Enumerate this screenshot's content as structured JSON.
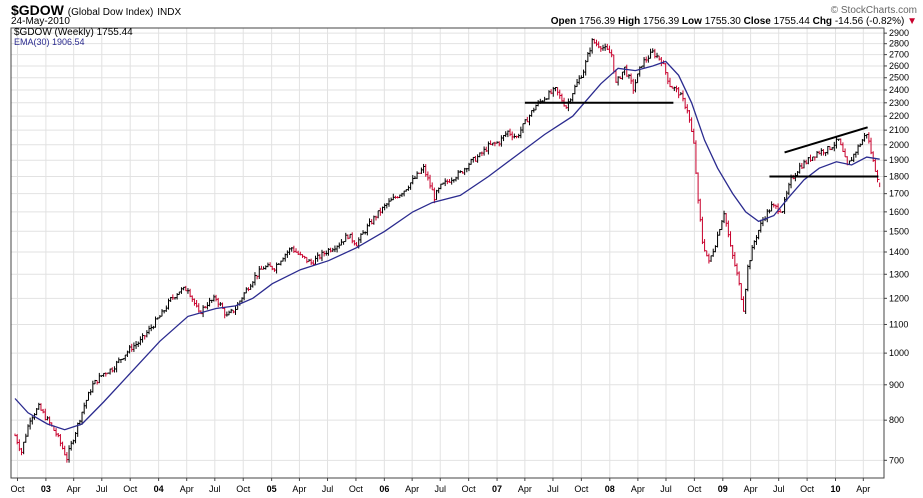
{
  "header": {
    "ticker": "$GDOW",
    "name": "(Global Dow Index)",
    "exchange": "INDX",
    "date": "24-May-2010",
    "brand": "© StockCharts.com",
    "open_label": "Open",
    "open": "1756.39",
    "high_label": "High",
    "high": "1756.39",
    "low_label": "Low",
    "low": "1755.30",
    "close_label": "Close",
    "close": "1755.44",
    "chg_label": "Chg",
    "chg": "-14.56 (-0.82%)",
    "chg_arrow": "▼"
  },
  "legend": {
    "price": "$GDOW (Weekly) 1755.44",
    "ema": "EMA(30) 1906.54"
  },
  "colors": {
    "up": "#000000",
    "down": "#c8002c",
    "ema": "#2b2b8f",
    "grid": "#e2e2e2"
  },
  "chart_data": {
    "type": "line",
    "scale": "log",
    "ylim": [
      660,
      2950
    ],
    "grid": true,
    "y_ticks": [
      700,
      800,
      900,
      1000,
      1100,
      1200,
      1300,
      1400,
      1500,
      1600,
      1700,
      1800,
      1900,
      2000,
      2100,
      2200,
      2300,
      2400,
      2500,
      2600,
      2700,
      2800,
      2900
    ],
    "x_ticks": [
      {
        "label": "Oct",
        "date": "2002-10-01",
        "bold": false
      },
      {
        "label": "03",
        "date": "2003-01-01",
        "bold": true
      },
      {
        "label": "Apr",
        "date": "2003-04-01",
        "bold": false
      },
      {
        "label": "Jul",
        "date": "2003-07-01",
        "bold": false
      },
      {
        "label": "Oct",
        "date": "2003-10-01",
        "bold": false
      },
      {
        "label": "04",
        "date": "2004-01-01",
        "bold": true
      },
      {
        "label": "Apr",
        "date": "2004-04-01",
        "bold": false
      },
      {
        "label": "Jul",
        "date": "2004-07-01",
        "bold": false
      },
      {
        "label": "Oct",
        "date": "2004-10-01",
        "bold": false
      },
      {
        "label": "05",
        "date": "2005-01-01",
        "bold": true
      },
      {
        "label": "Apr",
        "date": "2005-04-01",
        "bold": false
      },
      {
        "label": "Jul",
        "date": "2005-07-01",
        "bold": false
      },
      {
        "label": "Oct",
        "date": "2005-10-01",
        "bold": false
      },
      {
        "label": "06",
        "date": "2006-01-01",
        "bold": true
      },
      {
        "label": "Apr",
        "date": "2006-04-01",
        "bold": false
      },
      {
        "label": "Jul",
        "date": "2006-07-01",
        "bold": false
      },
      {
        "label": "Oct",
        "date": "2006-10-01",
        "bold": false
      },
      {
        "label": "07",
        "date": "2007-01-01",
        "bold": true
      },
      {
        "label": "Apr",
        "date": "2007-04-01",
        "bold": false
      },
      {
        "label": "Jul",
        "date": "2007-07-01",
        "bold": false
      },
      {
        "label": "Oct",
        "date": "2007-10-01",
        "bold": false
      },
      {
        "label": "08",
        "date": "2008-01-01",
        "bold": true
      },
      {
        "label": "Apr",
        "date": "2008-04-01",
        "bold": false
      },
      {
        "label": "Jul",
        "date": "2008-07-01",
        "bold": false
      },
      {
        "label": "Oct",
        "date": "2008-10-01",
        "bold": false
      },
      {
        "label": "09",
        "date": "2009-01-01",
        "bold": true
      },
      {
        "label": "Apr",
        "date": "2009-04-01",
        "bold": false
      },
      {
        "label": "Jul",
        "date": "2009-07-01",
        "bold": false
      },
      {
        "label": "Oct",
        "date": "2009-10-01",
        "bold": false
      },
      {
        "label": "10",
        "date": "2010-01-01",
        "bold": true
      },
      {
        "label": "Apr",
        "date": "2010-04-01",
        "bold": false
      }
    ],
    "series": [
      {
        "name": "$GDOW (Weekly)",
        "style": "hlc-bars",
        "points": [
          [
            "2002-09-23",
            760
          ],
          [
            "2002-10-14",
            720
          ],
          [
            "2002-11-11",
            805
          ],
          [
            "2002-12-09",
            835
          ],
          [
            "2003-01-06",
            800
          ],
          [
            "2003-02-03",
            765
          ],
          [
            "2003-03-10",
            705
          ],
          [
            "2003-04-07",
            770
          ],
          [
            "2003-05-05",
            840
          ],
          [
            "2003-06-02",
            900
          ],
          [
            "2003-07-07",
            935
          ],
          [
            "2003-08-04",
            950
          ],
          [
            "2003-09-08",
            990
          ],
          [
            "2003-10-06",
            1020
          ],
          [
            "2003-11-03",
            1040
          ],
          [
            "2003-12-08",
            1090
          ],
          [
            "2004-01-12",
            1140
          ],
          [
            "2004-02-09",
            1195
          ],
          [
            "2004-03-08",
            1230
          ],
          [
            "2004-04-05",
            1240
          ],
          [
            "2004-05-10",
            1140
          ],
          [
            "2004-06-07",
            1180
          ],
          [
            "2004-07-05",
            1200
          ],
          [
            "2004-08-09",
            1130
          ],
          [
            "2004-09-06",
            1160
          ],
          [
            "2004-10-04",
            1220
          ],
          [
            "2004-11-08",
            1290
          ],
          [
            "2004-12-06",
            1330
          ],
          [
            "2005-01-10",
            1330
          ],
          [
            "2005-02-07",
            1380
          ],
          [
            "2005-03-07",
            1420
          ],
          [
            "2005-04-04",
            1380
          ],
          [
            "2005-05-09",
            1350
          ],
          [
            "2005-06-06",
            1380
          ],
          [
            "2005-07-04",
            1410
          ],
          [
            "2005-08-08",
            1440
          ],
          [
            "2005-09-05",
            1480
          ],
          [
            "2005-10-03",
            1440
          ],
          [
            "2005-11-07",
            1520
          ],
          [
            "2005-12-05",
            1580
          ],
          [
            "2006-01-09",
            1640
          ],
          [
            "2006-02-06",
            1680
          ],
          [
            "2006-03-06",
            1720
          ],
          [
            "2006-04-10",
            1790
          ],
          [
            "2006-05-08",
            1850
          ],
          [
            "2006-06-12",
            1680
          ],
          [
            "2006-07-03",
            1740
          ],
          [
            "2006-08-07",
            1790
          ],
          [
            "2006-09-04",
            1820
          ],
          [
            "2006-10-02",
            1880
          ],
          [
            "2006-11-06",
            1930
          ],
          [
            "2006-12-04",
            1990
          ],
          [
            "2007-01-08",
            2020
          ],
          [
            "2007-02-05",
            2090
          ],
          [
            "2007-03-05",
            2050
          ],
          [
            "2007-04-09",
            2180
          ],
          [
            "2007-05-07",
            2280
          ],
          [
            "2007-06-04",
            2340
          ],
          [
            "2007-07-09",
            2400
          ],
          [
            "2007-08-13",
            2270
          ],
          [
            "2007-09-10",
            2420
          ],
          [
            "2007-10-08",
            2560
          ],
          [
            "2007-11-05",
            2820
          ],
          [
            "2007-12-03",
            2780
          ],
          [
            "2008-01-07",
            2700
          ],
          [
            "2008-01-21",
            2450
          ],
          [
            "2008-02-18",
            2580
          ],
          [
            "2008-03-17",
            2410
          ],
          [
            "2008-04-14",
            2620
          ],
          [
            "2008-05-19",
            2720
          ],
          [
            "2008-06-16",
            2650
          ],
          [
            "2008-07-14",
            2440
          ],
          [
            "2008-08-11",
            2380
          ],
          [
            "2008-09-08",
            2250
          ],
          [
            "2008-09-29",
            2000
          ],
          [
            "2008-10-13",
            1650
          ],
          [
            "2008-10-27",
            1450
          ],
          [
            "2008-11-17",
            1350
          ],
          [
            "2008-12-08",
            1440
          ],
          [
            "2009-01-05",
            1600
          ],
          [
            "2009-01-26",
            1420
          ],
          [
            "2009-02-16",
            1300
          ],
          [
            "2009-03-09",
            1160
          ],
          [
            "2009-03-23",
            1330
          ],
          [
            "2009-04-13",
            1450
          ],
          [
            "2009-05-11",
            1560
          ],
          [
            "2009-06-08",
            1630
          ],
          [
            "2009-07-13",
            1610
          ],
          [
            "2009-08-10",
            1780
          ],
          [
            "2009-09-07",
            1860
          ],
          [
            "2009-10-05",
            1900
          ],
          [
            "2009-11-02",
            1950
          ],
          [
            "2009-12-07",
            1970
          ],
          [
            "2010-01-11",
            2030
          ],
          [
            "2010-02-08",
            1860
          ],
          [
            "2010-03-08",
            1960
          ],
          [
            "2010-04-12",
            2080
          ],
          [
            "2010-05-03",
            1890
          ],
          [
            "2010-05-24",
            1755
          ]
        ]
      },
      {
        "name": "EMA(30)",
        "style": "line",
        "points": [
          [
            "2002-09-23",
            860
          ],
          [
            "2002-11-04",
            820
          ],
          [
            "2003-01-06",
            790
          ],
          [
            "2003-03-03",
            775
          ],
          [
            "2003-04-28",
            790
          ],
          [
            "2003-07-07",
            850
          ],
          [
            "2003-10-06",
            940
          ],
          [
            "2004-01-05",
            1040
          ],
          [
            "2004-04-05",
            1130
          ],
          [
            "2004-07-05",
            1160
          ],
          [
            "2004-09-06",
            1170
          ],
          [
            "2004-11-01",
            1200
          ],
          [
            "2005-01-03",
            1260
          ],
          [
            "2005-04-04",
            1320
          ],
          [
            "2005-07-04",
            1360
          ],
          [
            "2005-10-03",
            1420
          ],
          [
            "2006-01-02",
            1500
          ],
          [
            "2006-04-03",
            1600
          ],
          [
            "2006-06-05",
            1650
          ],
          [
            "2006-09-04",
            1690
          ],
          [
            "2006-12-04",
            1800
          ],
          [
            "2007-03-05",
            1930
          ],
          [
            "2007-06-04",
            2070
          ],
          [
            "2007-09-03",
            2200
          ],
          [
            "2007-12-03",
            2450
          ],
          [
            "2008-01-28",
            2580
          ],
          [
            "2008-03-24",
            2560
          ],
          [
            "2008-05-19",
            2600
          ],
          [
            "2008-06-30",
            2640
          ],
          [
            "2008-08-11",
            2520
          ],
          [
            "2008-09-22",
            2300
          ],
          [
            "2008-11-03",
            2030
          ],
          [
            "2008-12-15",
            1850
          ],
          [
            "2009-02-02",
            1700
          ],
          [
            "2009-03-16",
            1600
          ],
          [
            "2009-04-27",
            1550
          ],
          [
            "2009-06-15",
            1580
          ],
          [
            "2009-08-03",
            1680
          ],
          [
            "2009-09-21",
            1780
          ],
          [
            "2009-11-09",
            1850
          ],
          [
            "2010-01-04",
            1890
          ],
          [
            "2010-02-22",
            1870
          ],
          [
            "2010-04-12",
            1920
          ],
          [
            "2010-05-24",
            1906.54
          ]
        ]
      }
    ],
    "annotations": [
      {
        "kind": "horizontal-line",
        "from": "2007-04-01",
        "to": "2008-07-25",
        "value": 2300
      },
      {
        "kind": "trendline",
        "from": [
          "2009-07-20",
          1950
        ],
        "to": [
          "2010-04-15",
          2120
        ]
      },
      {
        "kind": "horizontal-line",
        "from": "2009-06-01",
        "to": "2010-05-20",
        "value": 1800
      }
    ]
  }
}
